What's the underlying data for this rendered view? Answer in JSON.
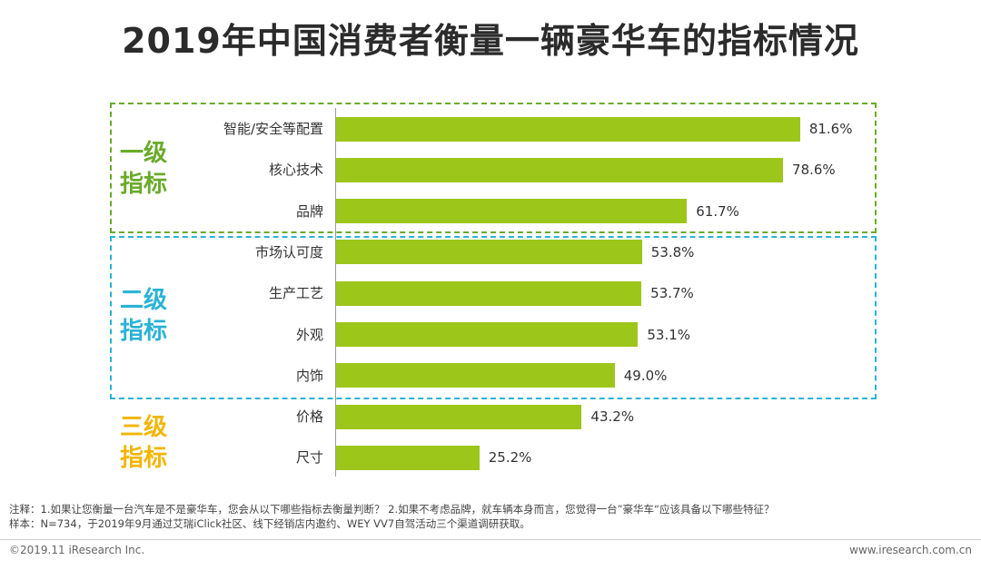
{
  "title": "2019年中国消费者衡量一辆豪华车的指标情况",
  "groups": [
    {
      "line1": "一级",
      "line2": "指标",
      "color": "#6aaa2a"
    },
    {
      "line1": "二级",
      "line2": "指标",
      "color": "#2ab3d6"
    },
    {
      "line1": "三级",
      "line2": "指标",
      "color": "#f2b600"
    }
  ],
  "chart_data": {
    "type": "bar",
    "orientation": "horizontal",
    "title": "2019年中国消费者衡量一辆豪华车的指标情况",
    "categories": [
      "智能/安全等配置",
      "核心技术",
      "品牌",
      "市场认可度",
      "生产工艺",
      "外观",
      "内饰",
      "价格",
      "尺寸"
    ],
    "values": [
      81.6,
      78.6,
      61.7,
      53.8,
      53.7,
      53.1,
      49.0,
      43.2,
      25.2
    ],
    "value_labels": [
      "81.6%",
      "78.6%",
      "61.7%",
      "53.8%",
      "53.7%",
      "53.1%",
      "49.0%",
      "43.2%",
      "25.2%"
    ],
    "xlim": [
      0,
      100
    ],
    "bar_color": "#9dc61b"
  },
  "notes": {
    "note1": "注释：1.如果让您衡量一台汽车是不是豪华车，您会从以下哪些指标去衡量判断？ 2.如果不考虑品牌，就车辆本身而言，您觉得一台”豪华车“应该具备以下哪些特征？",
    "note2": "样本：N=734，于2019年9月通过艾瑞iClick社区、线下经销店内邀约、WEY VV7自驾活动三个渠道调研获取。"
  },
  "footer": {
    "copyright": "©2019.11 iResearch Inc.",
    "website": "www.iresearch.com.cn"
  }
}
